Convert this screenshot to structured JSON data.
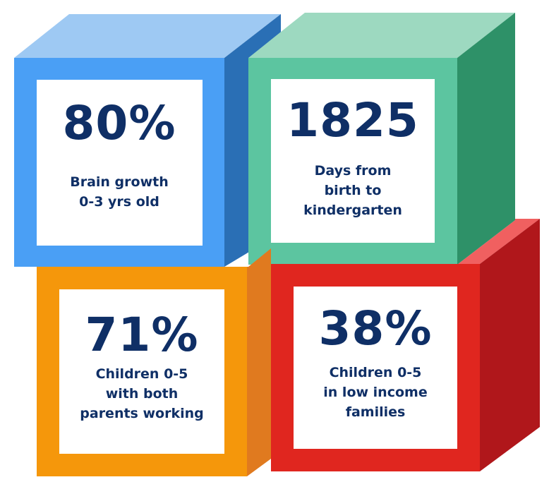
{
  "blocks": [
    {
      "value": "80%",
      "label": [
        "Brain growth",
        "0-3 yrs old"
      ]
    },
    {
      "value": "1825",
      "label": [
        "Days from",
        "birth to",
        "kindergarten"
      ]
    },
    {
      "value": "71%",
      "label": [
        "Children 0-5",
        "with both",
        "parents working"
      ]
    },
    {
      "value": "38%",
      "label": [
        "Children 0-5",
        "in low income",
        "families"
      ]
    }
  ]
}
